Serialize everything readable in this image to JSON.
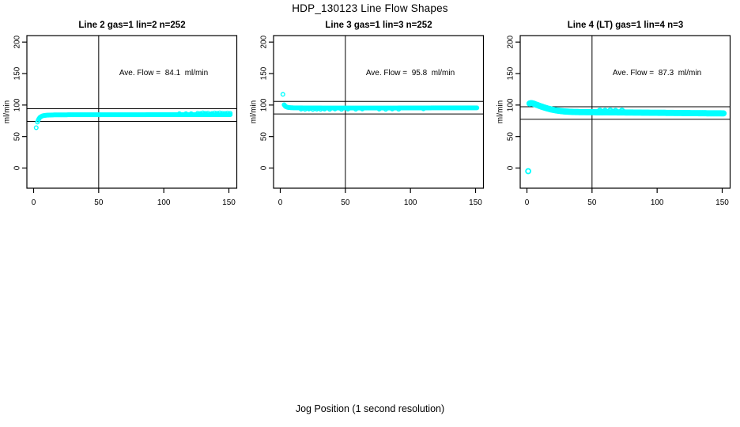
{
  "figure": {
    "title": "HDP_130123  Line Flow Shapes",
    "xlabel": "Jog Position (1 second resolution)",
    "point_color": "#00FFFF",
    "axis_color": "#000000",
    "background": "#FFFFFF"
  },
  "chart_data": [
    {
      "type": "scatter",
      "title": "Line 2 gas=1 lin=2 n=252",
      "annotation": "Ave. Flow =  84.1  ml/min",
      "ave_flow_ml_min": 84.1,
      "ylabel": "ml/min",
      "xticks": [
        0,
        50,
        100,
        150
      ],
      "yticks": [
        0,
        50,
        100,
        150,
        200
      ],
      "xlim": [
        -5.2,
        156
      ],
      "ylim": [
        -32,
        210
      ],
      "grid": false,
      "vline_x": 50,
      "hlines_y": [
        94.1,
        74.1
      ],
      "marker": "open-circle",
      "marker_radius": 2.3,
      "stroke_width": 1.4,
      "curve_points": [
        [
          3,
          73
        ],
        [
          3.5,
          76
        ],
        [
          4,
          78
        ],
        [
          4.5,
          79.5
        ],
        [
          5,
          80.7
        ],
        [
          6,
          82
        ],
        [
          7,
          82.9
        ],
        [
          8,
          83.4
        ],
        [
          10,
          83.9
        ],
        [
          12,
          84.1
        ],
        [
          15,
          84.3
        ],
        [
          20,
          84.5
        ],
        [
          30,
          84.6
        ],
        [
          50,
          84.6
        ],
        [
          70,
          84.6
        ],
        [
          90,
          84.7
        ],
        [
          110,
          84.7
        ],
        [
          130,
          84.8
        ],
        [
          151,
          84.8
        ]
      ],
      "extra_points": [
        [
          112,
          86.3
        ],
        [
          117,
          86.4
        ],
        [
          121,
          86.2
        ],
        [
          126,
          87
        ],
        [
          128,
          86.5
        ],
        [
          130,
          87.5
        ],
        [
          132,
          86.8
        ],
        [
          134,
          87.2
        ],
        [
          137,
          86.6
        ],
        [
          139,
          87.4
        ],
        [
          141,
          86.9
        ],
        [
          143,
          87.6
        ],
        [
          145,
          87
        ],
        [
          147,
          86.7
        ],
        [
          149,
          87.3
        ],
        [
          151,
          87
        ]
      ],
      "outlier_points": [
        [
          2,
          64
        ]
      ]
    },
    {
      "type": "scatter",
      "title": "Line 3 gas=1 lin=3 n=252",
      "annotation": "Ave. Flow =  95.8  ml/min",
      "ave_flow_ml_min": 95.8,
      "ylabel": "ml/min",
      "xticks": [
        0,
        50,
        100,
        150
      ],
      "yticks": [
        0,
        50,
        100,
        150,
        200
      ],
      "xlim": [
        -5.2,
        156
      ],
      "ylim": [
        -32,
        210
      ],
      "grid": false,
      "vline_x": 50,
      "hlines_y": [
        105.8,
        85.8
      ],
      "marker": "open-circle",
      "marker_radius": 2.3,
      "stroke_width": 1.4,
      "curve_points": [
        [
          3,
          100.5
        ],
        [
          3.5,
          99
        ],
        [
          4,
          97.8
        ],
        [
          5,
          96.8
        ],
        [
          6,
          96.2
        ],
        [
          8,
          95.8
        ],
        [
          10,
          95.6
        ],
        [
          15,
          95.5
        ],
        [
          25,
          95.4
        ],
        [
          40,
          95.3
        ],
        [
          60,
          95.3
        ],
        [
          80,
          95.3
        ],
        [
          100,
          95.4
        ],
        [
          120,
          95.5
        ],
        [
          151,
          95.5
        ]
      ],
      "extra_points": [
        [
          16,
          93.5
        ],
        [
          19,
          93.2
        ],
        [
          22,
          93.6
        ],
        [
          25,
          93
        ],
        [
          28,
          93.4
        ],
        [
          31,
          93.1
        ],
        [
          34,
          93.5
        ],
        [
          38,
          93.3
        ],
        [
          42,
          93.6
        ],
        [
          47,
          93.2
        ],
        [
          52,
          93.5
        ],
        [
          58,
          93.4
        ],
        [
          63,
          93.6
        ],
        [
          76,
          93.5
        ],
        [
          81,
          93.3
        ],
        [
          86,
          93.6
        ],
        [
          91,
          93.4
        ],
        [
          110,
          94
        ]
      ],
      "outlier_points": [
        [
          2,
          117
        ]
      ]
    },
    {
      "type": "scatter",
      "title": "Line 4 (LT) gas=1 lin=4 n=3",
      "annotation": "Ave. Flow =  87.3  ml/min",
      "ave_flow_ml_min": 87.3,
      "ylabel": "ml/min",
      "xticks": [
        0,
        50,
        100,
        150
      ],
      "yticks": [
        0,
        50,
        100,
        150,
        200
      ],
      "xlim": [
        -5.2,
        156
      ],
      "ylim": [
        -32,
        210
      ],
      "grid": false,
      "vline_x": 50,
      "hlines_y": [
        97.3,
        77.3
      ],
      "marker": "open-circle",
      "marker_radius": 3.0,
      "stroke_width": 1.8,
      "curve_points": [
        [
          2,
          102.5
        ],
        [
          3,
          103
        ],
        [
          4,
          102.8
        ],
        [
          5,
          102.3
        ],
        [
          6,
          101.5
        ],
        [
          8,
          100
        ],
        [
          10,
          98.4
        ],
        [
          12,
          97
        ],
        [
          15,
          95
        ],
        [
          18,
          93.3
        ],
        [
          21,
          92
        ],
        [
          24,
          91
        ],
        [
          28,
          90
        ],
        [
          32,
          89.4
        ],
        [
          36,
          89
        ],
        [
          40,
          88.8
        ],
        [
          50,
          88.6
        ],
        [
          60,
          88.5
        ],
        [
          70,
          88.3
        ],
        [
          80,
          88.1
        ],
        [
          90,
          87.9
        ],
        [
          100,
          87.7
        ],
        [
          110,
          87.5
        ],
        [
          120,
          87.3
        ],
        [
          130,
          87.1
        ],
        [
          140,
          86.9
        ],
        [
          151,
          86.8
        ]
      ],
      "extra_points": [
        [
          56,
          91
        ],
        [
          60,
          90.8
        ],
        [
          64,
          91.2
        ],
        [
          68,
          90.7
        ],
        [
          73,
          91
        ]
      ],
      "outlier_points": [
        [
          1,
          -5
        ]
      ]
    }
  ]
}
